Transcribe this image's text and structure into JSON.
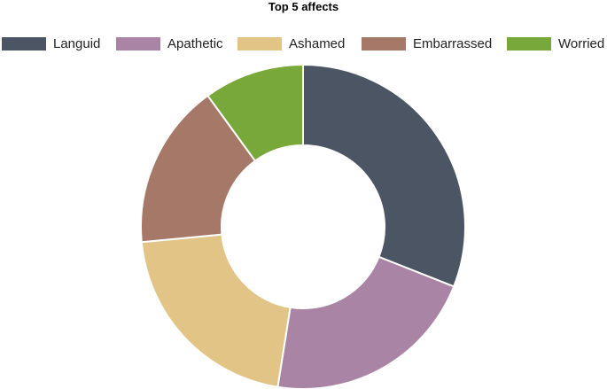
{
  "chart_data": {
    "type": "pie",
    "variant": "donut",
    "title": "Top 5 affects",
    "legend_position": "top",
    "categories": [
      "Languid",
      "Apathetic",
      "Ashamed",
      "Embarrassed",
      "Worried"
    ],
    "values": [
      31,
      21.5,
      21,
      16.5,
      10
    ],
    "colors": [
      "#4b5563",
      "#a984a5",
      "#e3c487",
      "#a57868",
      "#78a83a"
    ],
    "slice_border_color": "#ffffff"
  }
}
